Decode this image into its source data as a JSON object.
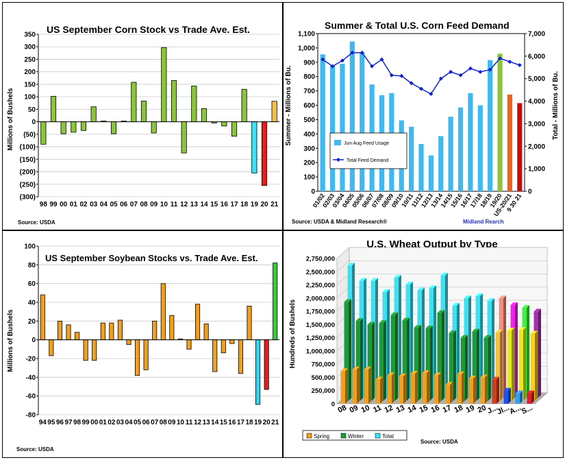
{
  "chart_data": [
    {
      "type": "bar",
      "title": "US September Corn Stock vs Trade Ave. Est.",
      "ylabel": "Millions of Bushels",
      "source": "Source: USDA",
      "ylim": [
        -300,
        350
      ],
      "yticks": [
        350,
        300,
        250,
        200,
        150,
        100,
        50,
        0,
        -50,
        -100,
        -150,
        -200,
        -250,
        -300
      ],
      "ytick_labels": [
        "350",
        "300",
        "250",
        "200",
        "150",
        "100",
        "50",
        "0",
        "(50)",
        "(100)",
        "(150)",
        "(200)",
        "(250)",
        "(300)"
      ],
      "categories": [
        "98",
        "99",
        "00",
        "01",
        "02",
        "03",
        "04",
        "05",
        "06",
        "07",
        "08",
        "09",
        "10",
        "11",
        "12",
        "13",
        "14",
        "15",
        "16",
        "17",
        "18",
        "19",
        "20",
        "21"
      ],
      "values": [
        -90,
        102,
        -48,
        -42,
        -35,
        60,
        3,
        -48,
        3,
        158,
        83,
        -45,
        297,
        165,
        -125,
        143,
        53,
        -5,
        -17,
        -58,
        130,
        -205,
        -255,
        82
      ],
      "colors": {
        "default": "#8cc43c",
        "19": "#40e0f0",
        "20": "#e81c1c",
        "21": "#f8c040"
      }
    },
    {
      "type": "bar",
      "title": "Summer & Total U.S. Corn Feed Demand",
      "ylabel": "Summer - Millions of Bu.",
      "y2label": "Total - Millions of Bu.",
      "source": "Source: USDA & Midland Research®",
      "source2": "Midland Rearch",
      "ylim": [
        0,
        1100
      ],
      "y2lim": [
        0,
        7000
      ],
      "yticks": [
        0,
        100,
        200,
        300,
        400,
        500,
        600,
        700,
        800,
        900,
        1000,
        1100
      ],
      "ytick_labels": [
        "0",
        "100",
        "200",
        "300",
        "400",
        "500",
        "600",
        "700",
        "800",
        "900",
        "1,000",
        "1,100"
      ],
      "y2ticks": [
        0,
        1000,
        2000,
        3000,
        4000,
        5000,
        6000,
        7000
      ],
      "y2tick_labels": [
        "0",
        "1,000",
        "2,000",
        "3,000",
        "4,000",
        "5,000",
        "6,000",
        "7,000"
      ],
      "categories": [
        "01/02",
        "02/03",
        "03/04",
        "04/05",
        "05/06",
        "06/07",
        "07/08",
        "08/09",
        "09/10",
        "10/11",
        "11/12",
        "12/13",
        "13/14",
        "14/15",
        "15/16",
        "16/17",
        "17/18",
        "18/19",
        "19/20",
        "US-20/21",
        "9 30 21"
      ],
      "series": [
        {
          "name": "Jun-Aug Feed Usage",
          "values": [
            955,
            875,
            890,
            1045,
            965,
            745,
            670,
            685,
            495,
            450,
            330,
            250,
            385,
            520,
            585,
            685,
            600,
            915,
            960,
            675,
            615
          ]
        },
        {
          "name": "Total Feed Demand",
          "values": [
            5850,
            5550,
            5800,
            6150,
            6150,
            5550,
            5850,
            5150,
            5120,
            4800,
            4550,
            4320,
            5000,
            5300,
            5150,
            5450,
            5300,
            5400,
            5900,
            5750,
            5600
          ]
        }
      ],
      "bar_colors": {
        "default": "#40b8f0",
        "19/20": "#8cc43c",
        "US-20/21": "#f06020",
        "9 30 21": "#c01010"
      },
      "line_color": "#1020d0"
    },
    {
      "type": "bar",
      "title": "US September Soybean Stocks vs. Trade Ave. Est.",
      "ylabel": "Millions of Bushels",
      "source": "Source: USDA",
      "ylim": [
        -80,
        100
      ],
      "yticks": [
        100,
        80,
        60,
        40,
        20,
        0,
        -20,
        -40,
        -60,
        -80
      ],
      "ytick_labels": [
        "100",
        "80",
        "60",
        "40",
        "20",
        "0",
        "-20",
        "-40",
        "-60",
        "-80"
      ],
      "categories": [
        "94",
        "95",
        "96",
        "97",
        "98",
        "99",
        "00",
        "01",
        "02",
        "03",
        "04",
        "05",
        "06",
        "07",
        "08",
        "09",
        "10",
        "11",
        "12",
        "13",
        "14",
        "15",
        "16",
        "17",
        "18",
        "19",
        "20",
        "21"
      ],
      "values": [
        48,
        -17,
        20,
        16,
        8,
        -22,
        -22,
        18,
        18,
        21,
        -5,
        -38,
        -32,
        20,
        60,
        26,
        1,
        -10,
        38,
        17,
        -34,
        -14,
        -4,
        -36,
        36,
        -69,
        -53,
        82
      ],
      "colors": {
        "default": "#f0a020",
        "19": "#40d0e8",
        "20": "#e81c1c",
        "21": "#30d030"
      }
    },
    {
      "type": "bar",
      "title": "U.S. Wheat Output by Type",
      "ylabel": "Hundreds of Bushels",
      "source": "Source: USDA",
      "ylim": [
        0,
        2750000
      ],
      "yticks": [
        0,
        250000,
        500000,
        750000,
        1000000,
        1250000,
        1500000,
        1750000,
        2000000,
        2250000,
        2500000,
        2750000
      ],
      "ytick_labels": [
        "0",
        "250,000",
        "500,000",
        "750,000",
        "1,000,000",
        "1,250,000",
        "1,500,000",
        "1,750,000",
        "2,000,000",
        "2,250,000",
        "2,500,000",
        "2,750,000"
      ],
      "categories": [
        "08",
        "09",
        "10",
        "11",
        "12",
        "13",
        "14",
        "15",
        "16",
        "17",
        "18",
        "19",
        "20",
        "J...",
        "Jl...",
        "A...",
        "S..."
      ],
      "series": [
        {
          "name": "Spring",
          "values": [
            620,
            650,
            650,
            460,
            540,
            520,
            570,
            580,
            540,
            360,
            560,
            480,
            500,
            460,
            250,
            200,
            200
          ]
        },
        {
          "name": "Winter",
          "values": [
            1870,
            1510,
            1440,
            1470,
            1620,
            1520,
            1380,
            1370,
            1660,
            1280,
            1190,
            1310,
            1190,
            1290,
            1330,
            1340,
            1270
          ]
        },
        {
          "name": "Total",
          "values": [
            2500,
            2210,
            2210,
            2000,
            2270,
            2140,
            2030,
            2070,
            2310,
            1740,
            1880,
            1920,
            1830,
            1880,
            1750,
            1700,
            1630
          ]
        }
      ],
      "value_unit_multiplier": 1000,
      "legend": [
        "Spring",
        "Winter",
        "Total"
      ],
      "legend_position": "bottom-left"
    }
  ]
}
